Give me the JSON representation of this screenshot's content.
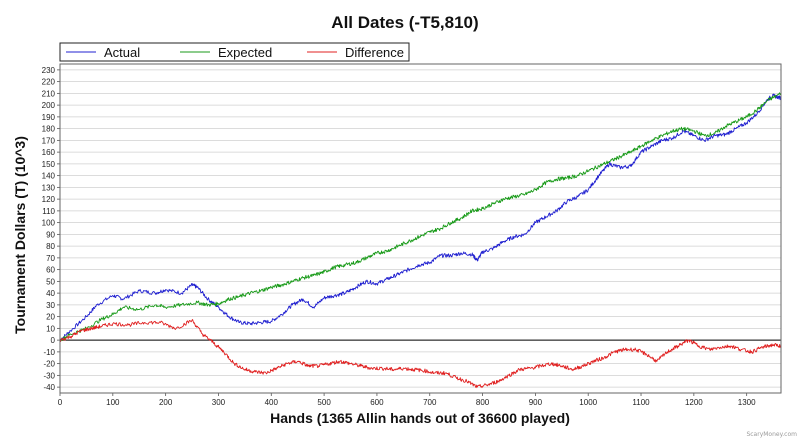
{
  "chart_data": {
    "type": "line",
    "title": "All Dates (-T5,810)",
    "xlabel": "Hands (1365 Allin hands out of 36600 played)",
    "ylabel": "Tournament Dollars (T) (10^3)",
    "xlim": [
      0,
      1365
    ],
    "ylim": [
      -45,
      235
    ],
    "x_ticks": [
      "0",
      "100",
      "200",
      "300",
      "400",
      "500",
      "600",
      "700",
      "800",
      "900",
      "1000",
      "1100",
      "1200",
      "1300"
    ],
    "y_ticks": [
      "-40",
      "-30",
      "-20",
      "-10",
      "0",
      "10",
      "20",
      "30",
      "40",
      "50",
      "60",
      "70",
      "80",
      "90",
      "100",
      "110",
      "120",
      "130",
      "140",
      "150",
      "160",
      "170",
      "180",
      "190",
      "200",
      "210",
      "220",
      "230"
    ],
    "grid": "horizontal",
    "legend_position": "top-left",
    "series": [
      {
        "name": "Actual",
        "color": "#2020d0",
        "x": [
          0,
          20,
          50,
          70,
          100,
          120,
          150,
          180,
          200,
          230,
          250,
          260,
          280,
          300,
          320,
          340,
          360,
          380,
          400,
          420,
          440,
          460,
          480,
          500,
          520,
          540,
          560,
          580,
          600,
          620,
          640,
          660,
          680,
          700,
          720,
          740,
          760,
          780,
          790,
          800,
          820,
          840,
          860,
          880,
          900,
          920,
          940,
          960,
          980,
          1000,
          1020,
          1040,
          1060,
          1080,
          1100,
          1120,
          1140,
          1160,
          1180,
          1200,
          1220,
          1240,
          1260,
          1280,
          1300,
          1320,
          1340,
          1350,
          1365
        ],
        "y": [
          0,
          8,
          20,
          30,
          38,
          35,
          42,
          40,
          43,
          40,
          47,
          45,
          35,
          28,
          20,
          15,
          14,
          15,
          16,
          22,
          30,
          35,
          28,
          36,
          38,
          40,
          45,
          50,
          48,
          52,
          56,
          60,
          64,
          66,
          72,
          72,
          74,
          73,
          68,
          75,
          78,
          84,
          88,
          90,
          100,
          105,
          110,
          118,
          122,
          128,
          140,
          150,
          147,
          148,
          160,
          165,
          170,
          172,
          178,
          174,
          170,
          174,
          175,
          180,
          185,
          193,
          205,
          208,
          206
        ]
      },
      {
        "name": "Expected",
        "color": "#189a18",
        "x": [
          0,
          20,
          50,
          80,
          100,
          120,
          150,
          180,
          200,
          230,
          260,
          280,
          300,
          320,
          340,
          360,
          380,
          400,
          420,
          440,
          460,
          480,
          500,
          520,
          540,
          560,
          580,
          600,
          620,
          640,
          660,
          680,
          700,
          720,
          740,
          760,
          780,
          800,
          820,
          840,
          860,
          880,
          900,
          920,
          940,
          960,
          980,
          1000,
          1020,
          1040,
          1060,
          1080,
          1100,
          1120,
          1140,
          1160,
          1180,
          1200,
          1220,
          1240,
          1260,
          1280,
          1300,
          1320,
          1340,
          1365
        ],
        "y": [
          0,
          5,
          10,
          18,
          22,
          28,
          26,
          30,
          28,
          30,
          32,
          30,
          31,
          35,
          37,
          40,
          42,
          45,
          47,
          50,
          53,
          55,
          58,
          62,
          64,
          66,
          70,
          74,
          76,
          80,
          84,
          88,
          92,
          95,
          100,
          104,
          110,
          112,
          116,
          120,
          122,
          124,
          128,
          134,
          137,
          138,
          140,
          144,
          148,
          152,
          156,
          160,
          165,
          170,
          174,
          178,
          180,
          178,
          174,
          176,
          182,
          186,
          190,
          196,
          204,
          210
        ]
      },
      {
        "name": "Difference",
        "color": "#e02020",
        "x": [
          0,
          20,
          40,
          60,
          80,
          100,
          130,
          160,
          190,
          220,
          250,
          270,
          290,
          310,
          330,
          350,
          370,
          390,
          410,
          430,
          450,
          470,
          490,
          510,
          530,
          550,
          570,
          590,
          610,
          630,
          650,
          670,
          690,
          710,
          730,
          750,
          770,
          790,
          810,
          830,
          850,
          870,
          890,
          910,
          930,
          950,
          970,
          990,
          1010,
          1030,
          1050,
          1070,
          1090,
          1110,
          1130,
          1150,
          1170,
          1190,
          1210,
          1230,
          1250,
          1270,
          1290,
          1310,
          1330,
          1350,
          1365
        ],
        "y": [
          0,
          3,
          8,
          10,
          12,
          14,
          13,
          15,
          15,
          10,
          17,
          5,
          -2,
          -10,
          -20,
          -25,
          -27,
          -28,
          -24,
          -20,
          -18,
          -22,
          -22,
          -20,
          -18,
          -20,
          -22,
          -24,
          -24,
          -25,
          -24,
          -25,
          -26,
          -28,
          -28,
          -32,
          -35,
          -40,
          -38,
          -35,
          -30,
          -25,
          -24,
          -22,
          -20,
          -22,
          -25,
          -22,
          -18,
          -15,
          -10,
          -8,
          -8,
          -12,
          -18,
          -10,
          -5,
          0,
          -5,
          -8,
          -6,
          -5,
          -8,
          -10,
          -6,
          -4,
          -5
        ]
      }
    ]
  },
  "watermark": "ScaryMoney.com"
}
